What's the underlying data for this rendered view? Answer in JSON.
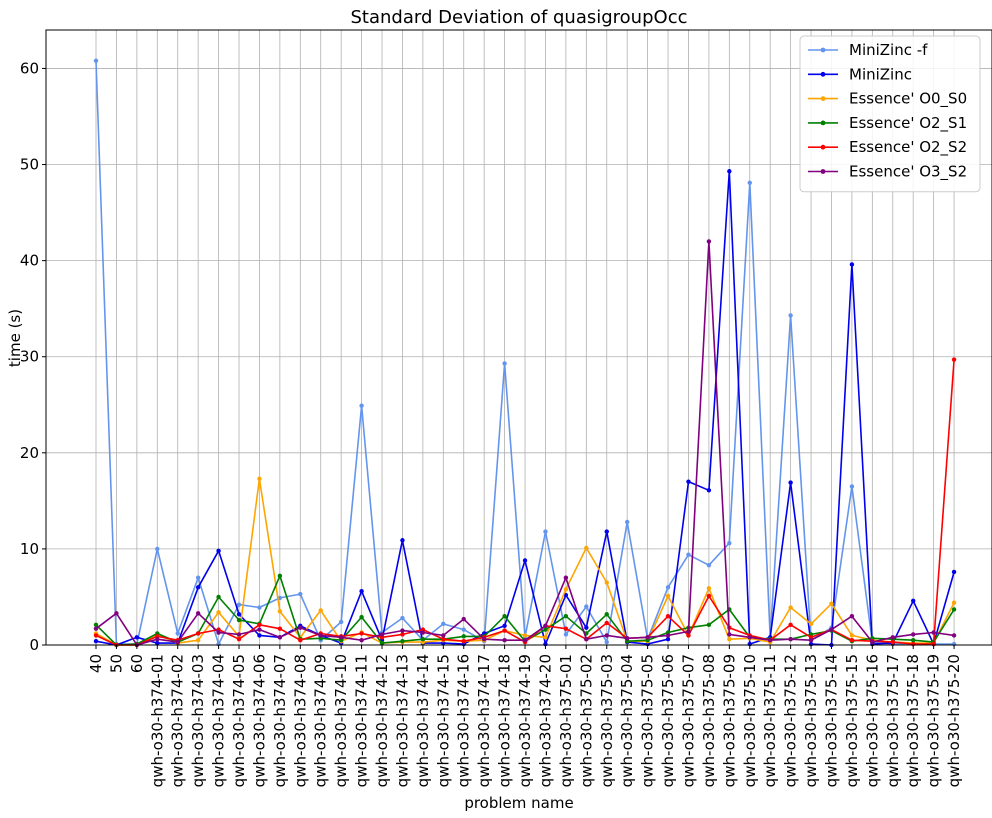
{
  "chart_data": {
    "type": "line",
    "title": "Standard Deviation of quasigroupOcc",
    "xlabel": "problem name",
    "ylabel": "time (s)",
    "ylim": [
      0,
      64
    ],
    "yticks": [
      0,
      10,
      20,
      30,
      40,
      50,
      60
    ],
    "grid": true,
    "legend_position": "top-right",
    "categories": [
      "40",
      "50",
      "60",
      "qwh-o30-h374-01",
      "qwh-o30-h374-02",
      "qwh-o30-h374-03",
      "qwh-o30-h374-04",
      "qwh-o30-h374-05",
      "qwh-o30-h374-06",
      "qwh-o30-h374-07",
      "qwh-o30-h374-08",
      "qwh-o30-h374-09",
      "qwh-o30-h374-10",
      "qwh-o30-h374-11",
      "qwh-o30-h374-12",
      "qwh-o30-h374-13",
      "qwh-o30-h374-14",
      "qwh-o30-h374-15",
      "qwh-o30-h374-16",
      "qwh-o30-h374-17",
      "qwh-o30-h374-18",
      "qwh-o30-h374-19",
      "qwh-o30-h374-20",
      "qwh-o30-h375-01",
      "qwh-o30-h375-02",
      "qwh-o30-h375-03",
      "qwh-o30-h375-04",
      "qwh-o30-h375-05",
      "qwh-o30-h375-06",
      "qwh-o30-h375-07",
      "qwh-o30-h375-08",
      "qwh-o30-h375-09",
      "qwh-o30-h375-10",
      "qwh-o30-h375-11",
      "qwh-o30-h375-12",
      "qwh-o30-h375-13",
      "qwh-o30-h375-14",
      "qwh-o30-h375-15",
      "qwh-o30-h375-16",
      "qwh-o30-h375-17",
      "qwh-o30-h375-18",
      "qwh-o30-h375-19",
      "qwh-o30-h375-20"
    ],
    "series": [
      {
        "name": "MiniZinc -f",
        "color": "#6495ED",
        "values": [
          60.8,
          0.1,
          0.1,
          10.0,
          1.2,
          7.0,
          0.1,
          4.2,
          3.9,
          4.9,
          5.3,
          0.5,
          2.4,
          24.9,
          1.3,
          2.8,
          0.5,
          2.2,
          1.6,
          0.4,
          29.3,
          0.8,
          11.8,
          1.1,
          4.0,
          0.3,
          12.8,
          0.6,
          6.0,
          9.4,
          8.3,
          10.6,
          48.1,
          0.8,
          34.3,
          0.5,
          1.8,
          16.5,
          0.3,
          0.1,
          0.1,
          0.1,
          0.1
        ]
      },
      {
        "name": "MiniZinc",
        "color": "#0000EE",
        "values": [
          0.4,
          0.0,
          0.8,
          0.2,
          0.2,
          6.0,
          9.8,
          3.2,
          1.0,
          0.8,
          2.0,
          1.0,
          0.2,
          5.6,
          0.5,
          10.9,
          0.2,
          0.2,
          0.1,
          1.2,
          2.0,
          8.8,
          0.1,
          5.2,
          1.8,
          11.8,
          0.3,
          0.1,
          0.6,
          17.0,
          16.1,
          49.3,
          0.1,
          0.8,
          16.9,
          0.1,
          0.0,
          39.6,
          0.1,
          0.2,
          4.6,
          0.1,
          7.6
        ]
      },
      {
        "name": "Essence' O0_S0",
        "color": "#FFA500",
        "values": [
          1.2,
          0.0,
          0.0,
          1.1,
          0.2,
          0.5,
          3.4,
          0.9,
          17.3,
          3.5,
          0.8,
          3.6,
          0.4,
          1.3,
          0.2,
          0.3,
          0.3,
          0.5,
          0.4,
          0.5,
          1.5,
          1.0,
          0.8,
          5.8,
          10.1,
          6.5,
          0.4,
          0.4,
          5.1,
          1.0,
          5.9,
          0.6,
          0.7,
          0.3,
          3.9,
          2.2,
          4.3,
          1.0,
          0.5,
          0.3,
          0.2,
          0.2,
          4.4
        ]
      },
      {
        "name": "Essence' O2_S1",
        "color": "#008000",
        "values": [
          2.1,
          0.0,
          0.1,
          1.2,
          0.3,
          1.2,
          5.0,
          2.6,
          2.2,
          7.2,
          0.6,
          0.7,
          0.5,
          2.9,
          0.2,
          0.4,
          0.6,
          0.6,
          0.9,
          0.9,
          3.0,
          0.4,
          1.6,
          3.0,
          1.2,
          3.2,
          0.4,
          0.5,
          1.3,
          1.8,
          2.1,
          3.7,
          0.8,
          0.6,
          0.6,
          1.1,
          1.5,
          0.4,
          0.7,
          0.6,
          0.5,
          0.3,
          3.7
        ]
      },
      {
        "name": "Essence' O2_S2",
        "color": "#FF0000",
        "values": [
          1.0,
          0.0,
          0.0,
          0.9,
          0.5,
          1.2,
          1.6,
          0.6,
          2.1,
          1.7,
          0.5,
          1.2,
          0.9,
          1.2,
          0.8,
          1.1,
          1.6,
          0.6,
          0.4,
          0.8,
          1.5,
          0.3,
          2.0,
          1.7,
          0.6,
          2.3,
          0.7,
          0.8,
          3.0,
          1.0,
          5.1,
          1.8,
          1.0,
          0.5,
          2.1,
          0.8,
          1.6,
          0.5,
          0.4,
          0.3,
          0.1,
          0.1,
          29.7
        ]
      },
      {
        "name": "Essence' O3_S2",
        "color": "#800080",
        "values": [
          1.7,
          3.3,
          0.0,
          0.6,
          0.3,
          3.3,
          1.3,
          1.1,
          1.6,
          0.8,
          1.8,
          1.0,
          0.8,
          0.5,
          1.1,
          1.5,
          1.3,
          1.0,
          2.7,
          0.6,
          0.5,
          0.5,
          2.0,
          7.0,
          0.6,
          1.0,
          0.7,
          0.8,
          1.0,
          1.4,
          42.0,
          1.1,
          0.8,
          0.5,
          0.6,
          0.5,
          1.6,
          3.0,
          0.3,
          0.8,
          1.1,
          1.3,
          1.0
        ]
      }
    ]
  }
}
